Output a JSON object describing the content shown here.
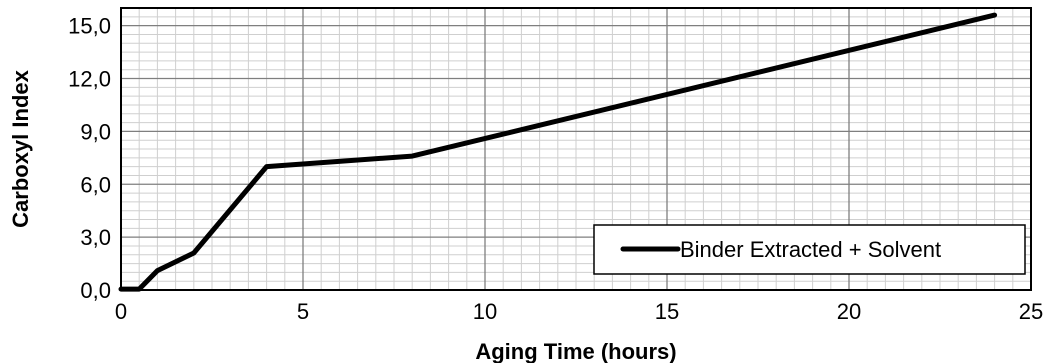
{
  "chart_data": {
    "type": "line",
    "xlabel": "Aging Time (hours)",
    "ylabel": "Carboxyl Index",
    "xlim": [
      0,
      25
    ],
    "ylim": [
      0,
      16
    ],
    "x_ticks": [
      "0",
      "5",
      "10",
      "15",
      "20",
      "25"
    ],
    "y_ticks": [
      "0,0",
      "3,0",
      "6,0",
      "9,0",
      "12,0",
      "15,0"
    ],
    "x_tick_values": [
      0,
      5,
      10,
      15,
      20,
      25
    ],
    "y_tick_values": [
      0,
      3,
      6,
      9,
      12,
      15
    ],
    "x_minor_step": 0.5,
    "y_minor_step": 0.5,
    "grid": true,
    "legend_position": "bottom-right",
    "series": [
      {
        "name": "Binder Extracted + Solvent",
        "color": "#000000",
        "x": [
          0,
          0.5,
          1,
          2,
          4,
          8,
          24
        ],
        "y": [
          0.05,
          0.05,
          1.1,
          2.1,
          7.0,
          7.6,
          15.6
        ]
      }
    ]
  }
}
